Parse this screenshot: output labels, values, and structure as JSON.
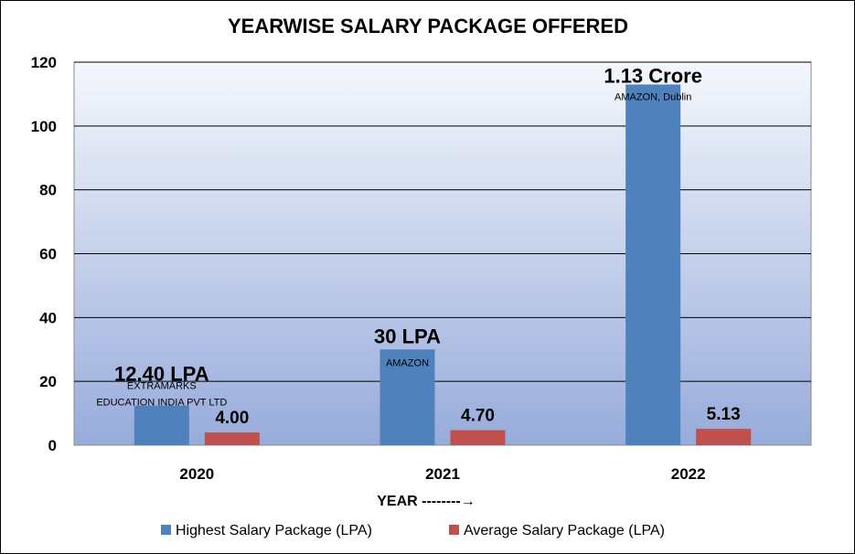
{
  "chart_data": {
    "type": "bar",
    "title": "YEARWISE SALARY PACKAGE OFFERED",
    "xlabel": "YEAR --------→",
    "ylabel": "",
    "categories": [
      "2020",
      "2021",
      "2022"
    ],
    "ylim": [
      0,
      120
    ],
    "yticks": [
      0,
      20,
      40,
      60,
      80,
      100,
      120
    ],
    "grid": true,
    "legend_position": "bottom",
    "series": [
      {
        "name": "Highest Salary Package (LPA)",
        "color": "#4F81BD",
        "values": [
          12.4,
          30,
          113
        ],
        "labels": [
          "12.40 LPA",
          "30 LPA",
          "1.13 Crore"
        ],
        "sublabels": [
          [
            "EXTRAMARKS",
            "EDUCATION INDIA PVT LTD"
          ],
          [
            "AMAZON"
          ],
          [
            "AMAZON, Dublin"
          ]
        ]
      },
      {
        "name": "Average Salary Package (LPA)",
        "color": "#C0504D",
        "values": [
          4.0,
          4.7,
          5.13
        ],
        "labels": [
          "4.00",
          "4.70",
          "5.13"
        ]
      }
    ]
  }
}
